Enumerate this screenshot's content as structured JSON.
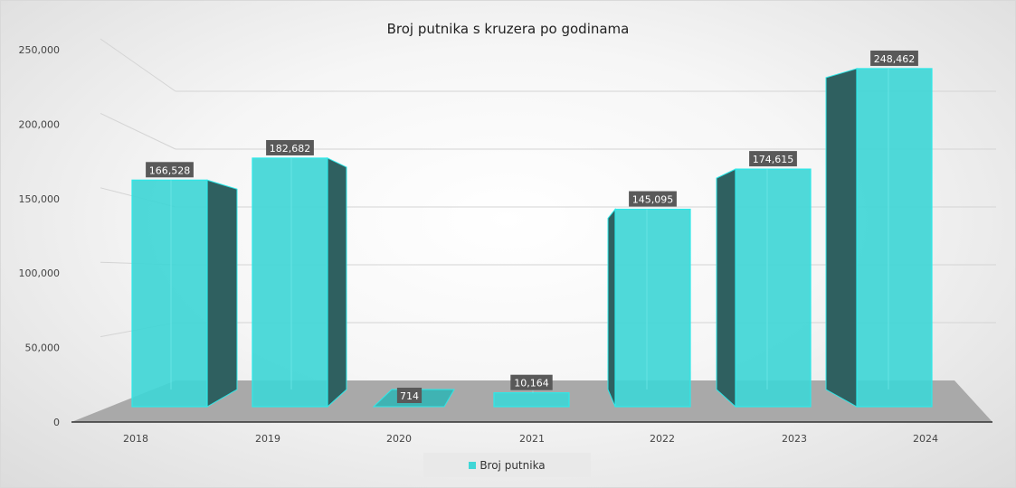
{
  "chart_data": {
    "type": "bar",
    "title": "Broj putnika s kruzera po godinama",
    "categories": [
      "2018",
      "2019",
      "2020",
      "2021",
      "2022",
      "2023",
      "2024"
    ],
    "series": [
      {
        "name": "Broj putnika",
        "values": [
          166528,
          182682,
          714,
          10164,
          145095,
          174615,
          248462
        ],
        "labels": [
          "166,528",
          "182,682",
          "714",
          "10,164",
          "145,095",
          "174,615",
          "248,462"
        ]
      }
    ],
    "y_ticks": [
      "0",
      "50,000",
      "100,000",
      "150,000",
      "200,000",
      "250,000"
    ],
    "ylim": [
      0,
      250000
    ],
    "xlabel": "",
    "ylabel": "",
    "legend_position": "bottom",
    "grid": true,
    "style": "3d-column",
    "colors": {
      "bar_front": "#40d6d6",
      "bar_edge": "#2ee8e8",
      "bar_side": "#2f6060",
      "label_bg": "#595959",
      "floor": "#a9a9a9",
      "grid": "#d4d4d4"
    }
  }
}
